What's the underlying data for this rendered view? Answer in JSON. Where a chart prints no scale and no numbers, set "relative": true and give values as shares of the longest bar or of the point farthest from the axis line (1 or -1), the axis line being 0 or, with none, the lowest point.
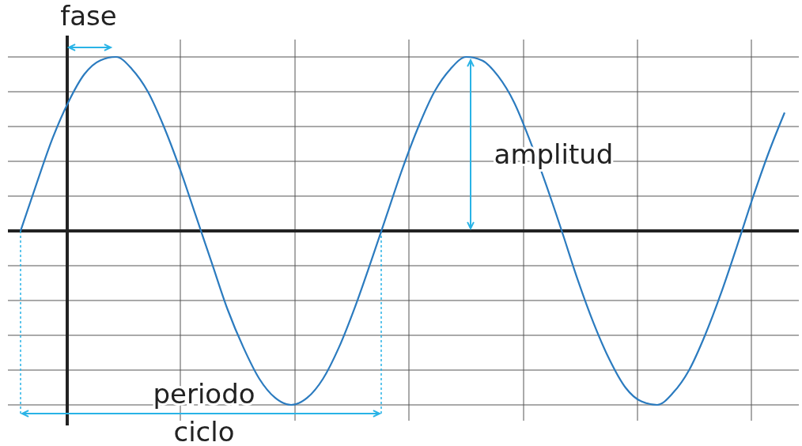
{
  "chart_data": {
    "type": "line",
    "relative": true,
    "grid": true,
    "categories": [
      null,
      null,
      null,
      null,
      null,
      null,
      null,
      null,
      null,
      null,
      null,
      null,
      null,
      null,
      null,
      null,
      null,
      null,
      null,
      null,
      null,
      null,
      null,
      null,
      null,
      null,
      null,
      null,
      null,
      null,
      null,
      null,
      null,
      null,
      null,
      null,
      null,
      null,
      null,
      null,
      null,
      null,
      null,
      null,
      null,
      null,
      null,
      null,
      null
    ],
    "series": [
      {
        "color": "#2b7bbf",
        "values": [
          0,
          0.27,
          0.53,
          0.74,
          0.9,
          0.98,
          1,
          0.93,
          0.8,
          0.6,
          0.36,
          0.09,
          -0.18,
          -0.45,
          -0.67,
          -0.85,
          -0.96,
          -1,
          -0.96,
          -0.85,
          -0.67,
          -0.44,
          -0.18,
          0.09,
          0.36,
          0.6,
          0.8,
          0.93,
          1,
          0.98,
          0.89,
          0.74,
          0.52,
          0.27,
          0,
          -0.28,
          -0.53,
          -0.74,
          -0.9,
          -0.98,
          -1,
          -0.93,
          -0.8,
          -0.6,
          -0.36,
          -0.09,
          0.19,
          0.45,
          0.68
        ]
      }
    ],
    "annotations": [
      "fase",
      "amplitud",
      "periodo",
      "ciclo"
    ]
  }
}
